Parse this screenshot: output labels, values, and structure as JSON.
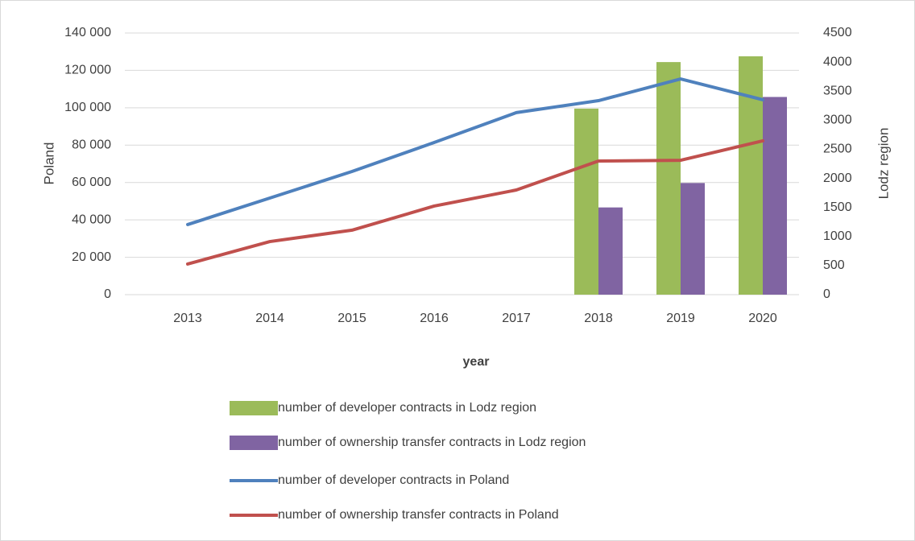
{
  "chart_data": {
    "type": "combo",
    "x_label": "year",
    "y_label": "Poland",
    "y2_label": "Lodz region",
    "categories": [
      "2013",
      "2014",
      "2015",
      "2016",
      "2017",
      "2018",
      "2019",
      "2020"
    ],
    "series": [
      {
        "name": "number of developer contracts in Lodz region",
        "type": "bar",
        "axis": "y2",
        "color": "#9bbb59",
        "values": [
          null,
          null,
          null,
          null,
          null,
          3200,
          4000,
          4100
        ]
      },
      {
        "name": "number of ownership transfer contracts in Lodz region",
        "type": "bar",
        "axis": "y2",
        "color": "#8064a2",
        "values": [
          null,
          null,
          null,
          null,
          null,
          1500,
          1920,
          3400
        ]
      },
      {
        "name": "number of developer contracts in Poland",
        "type": "line",
        "color": "#4f81bd",
        "values": [
          37500,
          51700,
          65900,
          81400,
          97400,
          103800,
          115400,
          104300
        ]
      },
      {
        "name": "number of ownership transfer contracts in Poland",
        "type": "line",
        "color": "#c0504d",
        "values": [
          16400,
          28400,
          34500,
          47400,
          56000,
          71500,
          71900,
          82300
        ]
      }
    ],
    "ylim": [
      0,
      140000
    ],
    "yticks": [
      0,
      {
        "value": 20000,
        "label": "20 000"
      },
      {
        "value": 40000,
        "label": "40 000"
      },
      {
        "value": 60000,
        "label": "60 000"
      },
      {
        "value": 80000,
        "label": "80 000"
      },
      {
        "value": 100000,
        "label": "100 000"
      },
      {
        "value": 120000,
        "label": "120 000"
      },
      {
        "value": 140000,
        "label": "140 000"
      }
    ],
    "y2lim": [
      0,
      4500
    ],
    "y2ticks": [
      0,
      500,
      1000,
      1500,
      2000,
      2500,
      3000,
      3500,
      4000,
      4500
    ],
    "grid": true,
    "legend": "bottom"
  }
}
